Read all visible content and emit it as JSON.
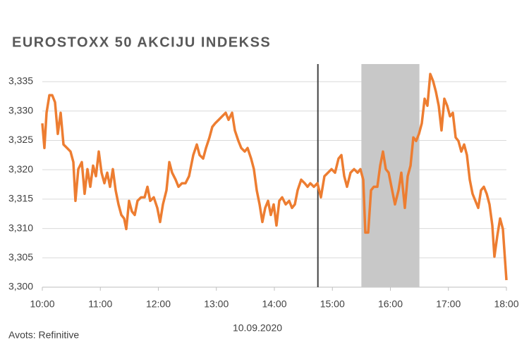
{
  "chart_data": {
    "type": "line",
    "title": "EUROSTOXX 50 AKCIJU INDEKSS",
    "date_label": "10.09.2020",
    "source": "Avots: Refinitive",
    "x": [
      10.0,
      10.036,
      10.073,
      10.122,
      10.17,
      10.219,
      10.267,
      10.316,
      10.365,
      10.426,
      10.486,
      10.535,
      10.571,
      10.62,
      10.681,
      10.729,
      10.778,
      10.827,
      10.875,
      10.924,
      10.973,
      11.021,
      11.07,
      11.119,
      11.167,
      11.216,
      11.264,
      11.313,
      11.362,
      11.41,
      11.447,
      11.495,
      11.544,
      11.593,
      11.641,
      11.702,
      11.763,
      11.812,
      11.86,
      11.921,
      11.982,
      12.03,
      12.079,
      12.14,
      12.189,
      12.237,
      12.298,
      12.347,
      12.407,
      12.468,
      12.529,
      12.602,
      12.663,
      12.711,
      12.772,
      12.821,
      12.881,
      12.93,
      12.979,
      13.04,
      13.1,
      13.161,
      13.21,
      13.271,
      13.319,
      13.38,
      13.429,
      13.489,
      13.538,
      13.599,
      13.647,
      13.696,
      13.745,
      13.793,
      13.842,
      13.891,
      13.939,
      13.988,
      14.036,
      14.085,
      14.134,
      14.195,
      14.255,
      14.304,
      14.353,
      14.401,
      14.462,
      14.523,
      14.571,
      14.62,
      14.681,
      14.742,
      14.802,
      14.863,
      14.924,
      14.985,
      15.046,
      15.106,
      15.155,
      15.204,
      15.252,
      15.313,
      15.374,
      15.435,
      15.483,
      15.532,
      15.568,
      15.617,
      15.666,
      15.714,
      15.775,
      15.824,
      15.872,
      15.921,
      15.97,
      16.018,
      16.079,
      16.14,
      16.188,
      16.249,
      16.298,
      16.347,
      16.395,
      16.444,
      16.492,
      16.541,
      16.59,
      16.638,
      16.687,
      16.736,
      16.784,
      16.833,
      16.881,
      16.93,
      16.979,
      17.027,
      17.076,
      17.125,
      17.173,
      17.222,
      17.271,
      17.319,
      17.368,
      17.416,
      17.465,
      17.514,
      17.562,
      17.611,
      17.66,
      17.708,
      17.757,
      17.793,
      17.842,
      17.891,
      17.939,
      17.976,
      18.0
    ],
    "series": [
      {
        "name": "EUROSTOXX 50",
        "color": "#ed7d31",
        "values": [
          3.3279,
          3.3237,
          3.3297,
          3.3327,
          3.3327,
          3.3315,
          3.3261,
          3.3297,
          3.3243,
          3.3237,
          3.3231,
          3.3213,
          3.3147,
          3.3201,
          3.3213,
          3.3159,
          3.3201,
          3.3171,
          3.3207,
          3.3189,
          3.3231,
          3.3195,
          3.3177,
          3.3195,
          3.3171,
          3.3201,
          3.3165,
          3.3141,
          3.3123,
          3.3117,
          3.3099,
          3.3147,
          3.3129,
          3.3123,
          3.3147,
          3.3153,
          3.3153,
          3.3171,
          3.3147,
          3.3153,
          3.3135,
          3.3111,
          3.3141,
          3.3165,
          3.3213,
          3.3195,
          3.3183,
          3.3171,
          3.3177,
          3.3177,
          3.3189,
          3.3225,
          3.3243,
          3.3225,
          3.3219,
          3.3237,
          3.3255,
          3.3273,
          3.3279,
          3.3285,
          3.3291,
          3.3297,
          3.3285,
          3.3297,
          3.3267,
          3.3249,
          3.3237,
          3.3231,
          3.3237,
          3.3219,
          3.3201,
          3.3165,
          3.3141,
          3.3111,
          3.3135,
          3.3147,
          3.3123,
          3.3141,
          3.3105,
          3.3147,
          3.3153,
          3.3141,
          3.3147,
          3.3135,
          3.3141,
          3.3165,
          3.3183,
          3.3177,
          3.3171,
          3.3177,
          3.3171,
          3.3177,
          3.3153,
          3.3189,
          3.3195,
          3.3201,
          3.3195,
          3.3219,
          3.3225,
          3.3189,
          3.3171,
          3.3195,
          3.3201,
          3.3195,
          3.3201,
          3.3183,
          3.3093,
          3.3093,
          3.3165,
          3.3171,
          3.3171,
          3.3207,
          3.3231,
          3.3201,
          3.3195,
          3.3171,
          3.3141,
          3.3165,
          3.3195,
          3.3135,
          3.3189,
          3.3207,
          3.3255,
          3.3249,
          3.3261,
          3.3279,
          3.3321,
          3.3309,
          3.3363,
          3.3351,
          3.3333,
          3.3309,
          3.3267,
          3.3321,
          3.3309,
          3.3291,
          3.3297,
          3.3255,
          3.3249,
          3.3231,
          3.3243,
          3.3225,
          3.3183,
          3.3159,
          3.3147,
          3.3135,
          3.3165,
          3.3171,
          3.3159,
          3.3141,
          3.3105,
          3.3052,
          3.3087,
          3.3117,
          3.3099,
          3.3046,
          3.3012
        ]
      }
    ],
    "xlim": [
      10,
      18
    ],
    "xticks": [
      {
        "value": 10,
        "label": "10:00"
      },
      {
        "value": 11,
        "label": "11:00"
      },
      {
        "value": 12,
        "label": "12:00"
      },
      {
        "value": 13,
        "label": "13:00"
      },
      {
        "value": 14,
        "label": "14:00"
      },
      {
        "value": 15,
        "label": "15:00"
      },
      {
        "value": 16,
        "label": "16:00"
      },
      {
        "value": 17,
        "label": "17:00"
      },
      {
        "value": 18,
        "label": "18:00"
      }
    ],
    "ylim": [
      3.3,
      3.338
    ],
    "yticks": [
      {
        "value": 3.3,
        "label": "3,300"
      },
      {
        "value": 3.305,
        "label": "3,305"
      },
      {
        "value": 3.31,
        "label": "3,310"
      },
      {
        "value": 3.315,
        "label": "3,315"
      },
      {
        "value": 3.32,
        "label": "3,320"
      },
      {
        "value": 3.325,
        "label": "3,325"
      },
      {
        "value": 3.33,
        "label": "3,330"
      },
      {
        "value": 3.335,
        "label": "3,335"
      }
    ],
    "grid": true,
    "vline_x": 14.75,
    "vline_color": "#404040",
    "shade_x": [
      15.5,
      16.5
    ],
    "shade_color": "#c8c8c8"
  }
}
